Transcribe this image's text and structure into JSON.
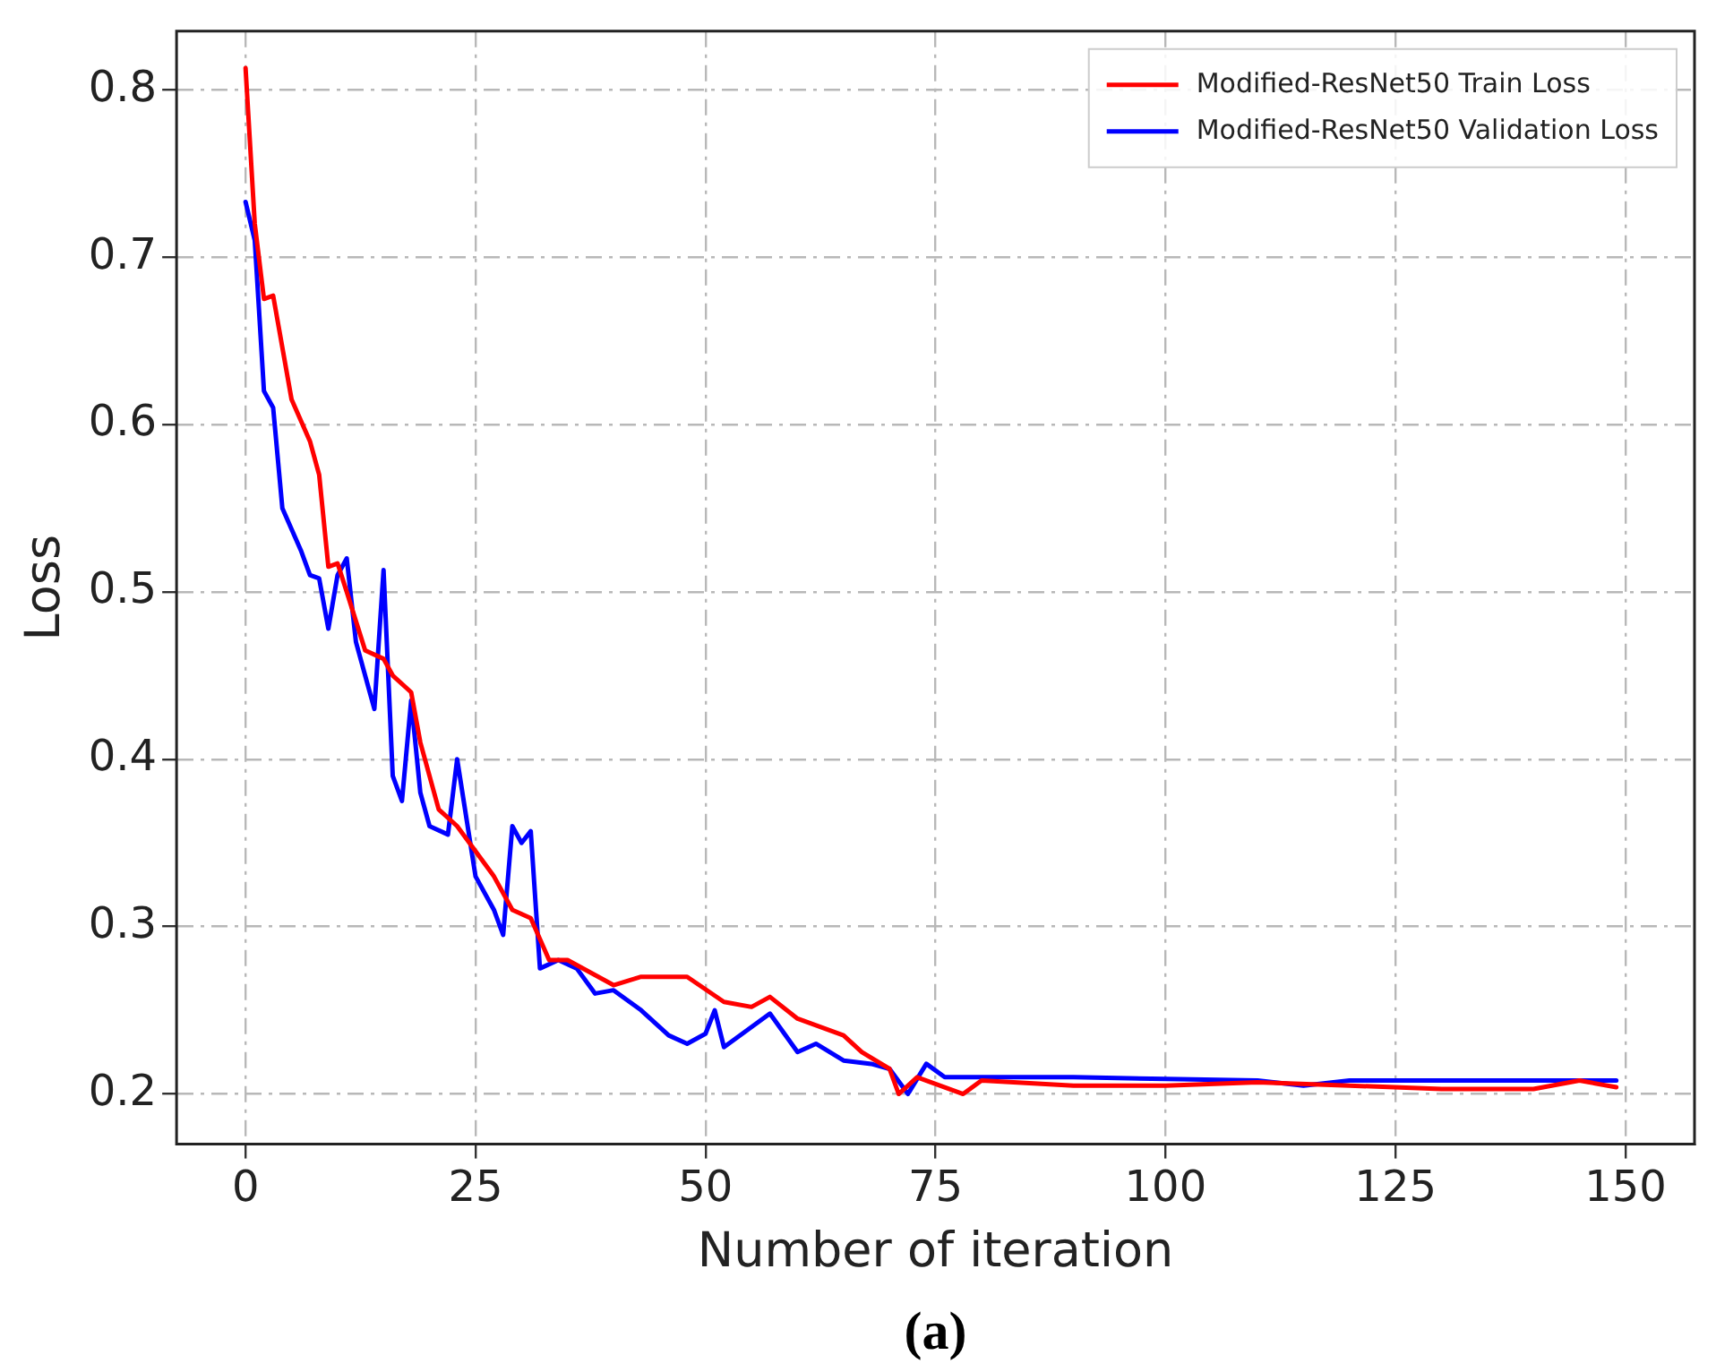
{
  "chart_data": {
    "type": "line",
    "xlabel": "Number of iteration",
    "ylabel": "Loss",
    "annotations": [
      "(a)"
    ],
    "xlim": [
      -7.5,
      157.5
    ],
    "xticks": [
      0,
      25,
      50,
      75,
      100,
      125,
      150
    ],
    "ylim": [
      0.17,
      0.835
    ],
    "yticks": [
      0.2,
      0.3,
      0.4,
      0.5,
      0.6,
      0.7,
      0.8
    ],
    "grid": true,
    "legend": "top right",
    "marker": "none",
    "line_style": "solid",
    "series": [
      {
        "name": "Modified-ResNet50 Train Loss",
        "color": "#ff0000",
        "x": [
          0,
          1,
          2,
          3,
          5,
          7,
          8,
          9,
          10,
          11,
          13,
          15,
          16,
          18,
          19,
          21,
          23,
          25,
          27,
          29,
          31,
          33,
          35,
          40,
          43,
          48,
          52,
          55,
          57,
          60,
          65,
          67,
          70,
          71,
          73,
          78,
          80,
          90,
          100,
          110,
          120,
          130,
          140,
          145,
          149
        ],
        "values": [
          0.813,
          0.72,
          0.675,
          0.677,
          0.615,
          0.59,
          0.57,
          0.515,
          0.517,
          0.5,
          0.465,
          0.46,
          0.45,
          0.44,
          0.41,
          0.37,
          0.36,
          0.345,
          0.33,
          0.31,
          0.305,
          0.28,
          0.28,
          0.265,
          0.27,
          0.27,
          0.255,
          0.252,
          0.258,
          0.245,
          0.235,
          0.225,
          0.215,
          0.2,
          0.21,
          0.2,
          0.208,
          0.205,
          0.205,
          0.207,
          0.205,
          0.203,
          0.203,
          0.208,
          0.204
        ]
      },
      {
        "name": "Modified-ResNet50 Validation Loss",
        "color": "#0000ff",
        "x": [
          0,
          1,
          2,
          3,
          4,
          6,
          7,
          8,
          9,
          10,
          11,
          12,
          14,
          15,
          16,
          17,
          18,
          19,
          20,
          22,
          23,
          25,
          27,
          28,
          29,
          30,
          31,
          32,
          34,
          36,
          38,
          40,
          43,
          46,
          48,
          50,
          51,
          52,
          55,
          57,
          60,
          62,
          65,
          68,
          70,
          72,
          74,
          76,
          90,
          100,
          110,
          115,
          120,
          140,
          149
        ],
        "values": [
          0.733,
          0.71,
          0.62,
          0.61,
          0.55,
          0.525,
          0.51,
          0.508,
          0.478,
          0.51,
          0.52,
          0.47,
          0.43,
          0.513,
          0.39,
          0.375,
          0.435,
          0.38,
          0.36,
          0.355,
          0.4,
          0.33,
          0.31,
          0.295,
          0.36,
          0.35,
          0.357,
          0.275,
          0.28,
          0.275,
          0.26,
          0.262,
          0.25,
          0.235,
          0.23,
          0.236,
          0.25,
          0.228,
          0.24,
          0.248,
          0.225,
          0.23,
          0.22,
          0.218,
          0.215,
          0.2,
          0.218,
          0.21,
          0.21,
          0.209,
          0.208,
          0.205,
          0.208,
          0.208,
          0.208
        ]
      }
    ]
  }
}
